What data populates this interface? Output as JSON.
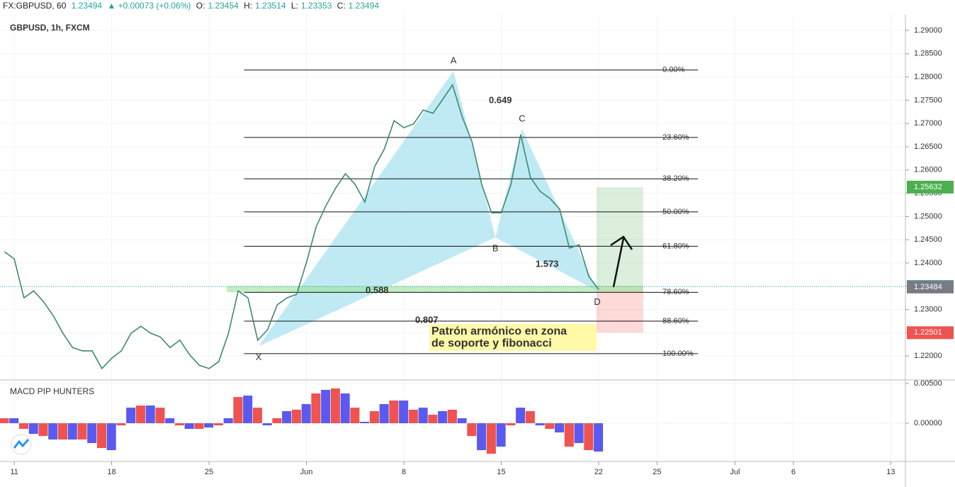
{
  "header": {
    "symbol": "FX:GBPUSD, 60",
    "last": "1.23494",
    "change": "▲ +0.00073 (+0.06%)",
    "open_label": "O:",
    "open": "1.23454",
    "high_label": "H:",
    "high": "1.23514",
    "low_label": "L:",
    "low": "1.23353",
    "close_label": "C:",
    "close": "1.23494"
  },
  "chart_data": [
    {
      "type": "line",
      "title": "GBPUSD, 1h, FXCM",
      "color": "#3d8a6e",
      "x": [
        -0.5,
        0,
        0.5,
        1,
        1.5,
        2,
        2.5,
        3,
        3.5,
        4,
        4.5,
        5,
        5.5,
        6,
        6.5,
        7,
        7.5,
        8,
        8.5,
        9,
        9.5,
        10,
        10.5,
        11,
        11.5,
        12,
        12.5,
        13,
        13.5,
        14,
        14.5,
        15,
        15.5,
        16,
        16.5,
        17,
        17.5,
        18,
        18.5,
        19,
        19.5,
        20,
        20.5,
        21,
        21.5,
        22,
        22.5,
        23,
        23.5,
        24,
        24.5,
        25,
        25.5,
        26,
        26.5,
        27,
        27.5,
        28,
        28.5,
        29,
        29.5,
        30
      ],
      "values": [
        1.2424,
        1.2409,
        1.2325,
        1.234,
        1.2317,
        1.2287,
        1.2249,
        1.2218,
        1.2211,
        1.2211,
        1.2173,
        1.2195,
        1.2211,
        1.2249,
        1.2264,
        1.2249,
        1.2241,
        1.2218,
        1.2234,
        1.2203,
        1.218,
        1.2173,
        1.2188,
        1.2249,
        1.234,
        1.2325,
        1.2234,
        1.2256,
        1.231,
        1.2325,
        1.2333,
        1.2401,
        1.2478,
        1.2523,
        1.2561,
        1.2592,
        1.2569,
        1.2531,
        1.2607,
        1.2645,
        1.2706,
        1.2691,
        1.2699,
        1.2729,
        1.2722,
        1.2752,
        1.2783,
        1.2714,
        1.2661,
        1.2569,
        1.2508,
        1.2508,
        1.2569,
        1.2676,
        1.2584,
        1.2554,
        1.2539,
        1.2516,
        1.2432,
        1.2439,
        1.2371,
        1.2343
      ],
      "xlim": [
        -0.73,
        45.75
      ],
      "xticks": [
        {
          "value": 0,
          "label": "11"
        },
        {
          "value": 5,
          "label": "18"
        },
        {
          "value": 10,
          "label": "25"
        },
        {
          "value": 15,
          "label": "Jun"
        },
        {
          "value": 20,
          "label": "8"
        },
        {
          "value": 25,
          "label": "15"
        },
        {
          "value": 30,
          "label": "22"
        },
        {
          "value": 33,
          "label": "25"
        },
        {
          "value": 37,
          "label": "Jul"
        },
        {
          "value": 40,
          "label": "6"
        },
        {
          "value": 45,
          "label": "13"
        }
      ],
      "ylim": [
        1.215,
        1.29351
      ],
      "yticks": [
        {
          "value": 1.22,
          "label": "1.22000"
        },
        {
          "value": 1.225,
          "label": "1.22500"
        },
        {
          "value": 1.23,
          "label": "1.23000"
        },
        {
          "value": 1.235,
          "label": "1.23500"
        },
        {
          "value": 1.24,
          "label": "1.24000"
        },
        {
          "value": 1.245,
          "label": "1.24500"
        },
        {
          "value": 1.25,
          "label": "1.25000"
        },
        {
          "value": 1.255,
          "label": "1.25500"
        },
        {
          "value": 1.26,
          "label": "1.26000"
        },
        {
          "value": 1.265,
          "label": "1.26500"
        },
        {
          "value": 1.27,
          "label": "1.27000"
        },
        {
          "value": 1.275,
          "label": "1.27500"
        },
        {
          "value": 1.28,
          "label": "1.28000"
        },
        {
          "value": 1.285,
          "label": "1.28500"
        },
        {
          "value": 1.29,
          "label": "1.29000"
        }
      ],
      "grid": true,
      "current_price": 1.23494,
      "price_labels": [
        {
          "value": 1.25632,
          "label": "1.25632",
          "color": "#4caf50"
        },
        {
          "value": 1.23494,
          "label": "1.23494",
          "color": "#26a69a"
        },
        {
          "value": 1.23484,
          "label": "1.23484",
          "color": "#787b86"
        },
        {
          "value": 1.22501,
          "label": "1.22501",
          "color": "#ef5350"
        }
      ],
      "fib_x": [
        11.8,
        35.1
      ],
      "fib_levels": [
        {
          "value": 1.2815,
          "label": "0.00%"
        },
        {
          "value": 1.267,
          "label": "23.60%"
        },
        {
          "value": 1.2581,
          "label": "38.20%"
        },
        {
          "value": 1.251,
          "label": "50.00%"
        },
        {
          "value": 1.2436,
          "label": "61.80%"
        },
        {
          "value": 1.2337,
          "label": "78.60%"
        },
        {
          "value": 1.2275,
          "label": "88.60%"
        },
        {
          "value": 1.2205,
          "label": "100.00%"
        }
      ],
      "pattern": {
        "x": [
          12.55,
          22.55,
          24.7,
          26.07,
          29.93
        ],
        "y": [
          1.2221,
          1.2813,
          1.2455,
          1.2688,
          1.234
        ],
        "labels": [
          "X",
          "A",
          "B",
          "C",
          "D"
        ],
        "ratios": [
          0.649,
          0.588,
          1.573,
          0.807
        ]
      },
      "position": {
        "x": [
          29.89,
          32.29
        ],
        "target": 1.25632,
        "entry": 1.23494,
        "stop": 1.22501
      },
      "annotation": [
        "Patrón armónico en zona",
        "de soporte y fibonacci"
      ]
    },
    {
      "type": "bar",
      "title": "MACD PIP HUNTERS",
      "color": "#5a5af0",
      "x": [
        -0.5,
        0,
        0.5,
        1,
        1.5,
        2,
        2.5,
        3,
        3.5,
        4,
        4.5,
        5,
        5.5,
        6,
        6.5,
        7,
        7.5,
        8,
        8.5,
        9,
        9.5,
        10,
        10.5,
        11,
        11.5,
        12,
        12.5,
        13,
        13.5,
        14,
        14.5,
        15,
        15.5,
        16,
        16.5,
        17,
        17.5,
        18,
        18.5,
        19,
        19.5,
        20,
        20.5,
        21,
        21.5,
        22,
        22.5,
        23,
        23.5,
        24,
        24.5,
        25,
        25.5,
        26,
        26.5,
        27,
        27.5,
        28,
        28.5,
        29,
        29.5,
        30
      ],
      "values": [
        0.00063,
        0.00063,
        -0.00071,
        -0.00134,
        -0.00161,
        -0.00205,
        -0.00205,
        -0.00205,
        -0.00205,
        -0.0025,
        -0.00313,
        -0.00339,
        -0.00027,
        0.00196,
        0.00223,
        0.00223,
        0.00196,
        0.00063,
        -0.00027,
        -0.00071,
        -0.00071,
        -0.00054,
        -0.00027,
        0.00063,
        0.0033,
        0.00348,
        0.00196,
        -0.00027,
        0.00063,
        0.00152,
        0.0017,
        0.00241,
        0.00375,
        0.0042,
        0.00438,
        0.00375,
        0.00196,
        0.00018,
        0.00152,
        0.00241,
        0.00286,
        0.00286,
        0.0017,
        0.00196,
        0.00107,
        0.00152,
        0.0017,
        0.00063,
        -0.00161,
        -0.00339,
        -0.00384,
        -0.00295,
        -0.00027,
        0.00196,
        0.00152,
        -0.00027,
        -0.00071,
        -0.00116,
        -0.00295,
        -0.0025,
        -0.00339,
        -0.00357
      ],
      "ylim": [
        -0.00473,
        0.00536
      ],
      "yticks": [
        {
          "value": 0,
          "label": "0.00000"
        },
        {
          "value": 0.005,
          "label": "0.00500"
        }
      ]
    }
  ]
}
